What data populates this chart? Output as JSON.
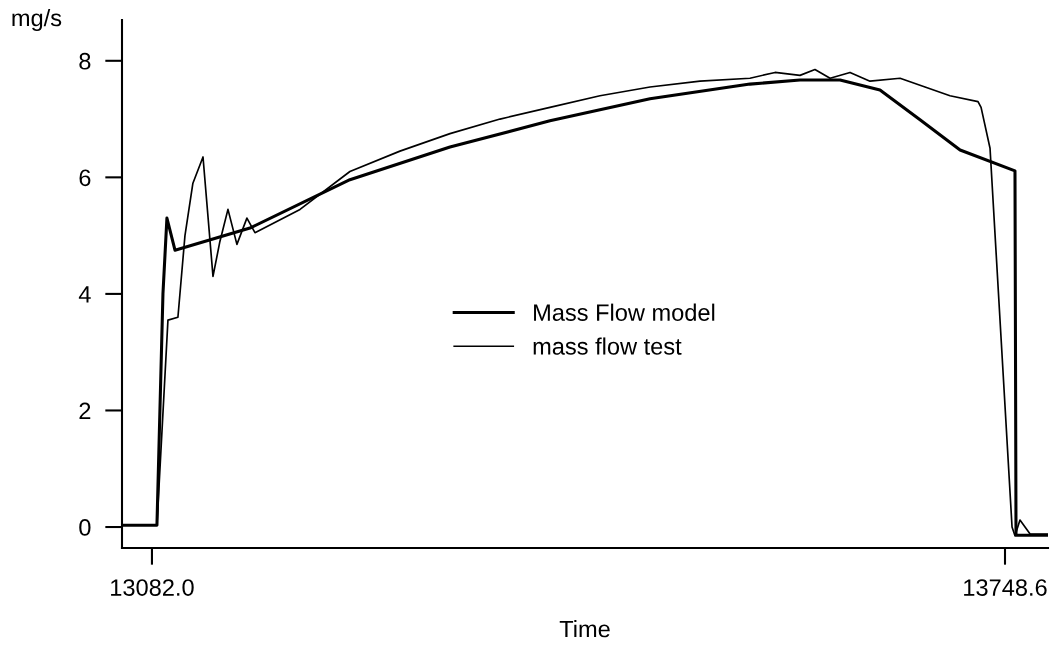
{
  "chart_data": {
    "type": "line",
    "xlabel": "Time",
    "ylabel": "mg/s",
    "xlim": [
      13058.6,
      13782.2
    ],
    "ylim": [
      -0.36,
      8.7
    ],
    "xticks": [
      {
        "value": 13082.0,
        "label": "13082.0"
      },
      {
        "value": 13748.6,
        "label": "13748.6"
      }
    ],
    "yticks": [
      0,
      2,
      4,
      6,
      8
    ],
    "grid": false,
    "legend": "center",
    "marker": "none",
    "line_style": "solid",
    "series": [
      {
        "name": "Mass Flow model",
        "color": "#000000",
        "x": [
          13060.1,
          13085.9,
          13090.6,
          13093.7,
          13100.0,
          13158.6,
          13236.7,
          13314.9,
          13393.0,
          13471.2,
          13549.3,
          13588.4,
          13619.7,
          13650.9,
          13682.2,
          13713.5,
          13756.4,
          13757.2,
          13782.2
        ],
        "values": [
          0.03,
          0.03,
          4.0,
          5.3,
          4.75,
          5.13,
          5.96,
          6.52,
          6.97,
          7.35,
          7.6,
          7.67,
          7.67,
          7.5,
          6.99,
          6.47,
          6.11,
          -0.14,
          -0.14
        ]
      },
      {
        "name": "mass flow test",
        "color": "#000000",
        "x": [
          13060.1,
          13085.9,
          13094.5,
          13102.3,
          13107.8,
          13114.0,
          13121.9,
          13129.7,
          13135.1,
          13141.4,
          13148.4,
          13156.2,
          13162.5,
          13197.7,
          13236.7,
          13275.8,
          13314.9,
          13354.0,
          13393.0,
          13432.1,
          13471.2,
          13510.3,
          13549.3,
          13568.9,
          13588.4,
          13600.1,
          13611.9,
          13627.5,
          13643.1,
          13666.6,
          13686.1,
          13705.6,
          13727.5,
          13729.9,
          13736.9,
          13754.1,
          13756.4,
          13760.3,
          13768.2,
          13782.2
        ],
        "values": [
          0.03,
          0.03,
          3.55,
          3.6,
          5.0,
          5.9,
          6.35,
          4.3,
          4.9,
          5.45,
          4.85,
          5.3,
          5.05,
          5.45,
          6.1,
          6.45,
          6.75,
          7.0,
          7.2,
          7.4,
          7.55,
          7.65,
          7.7,
          7.8,
          7.75,
          7.85,
          7.7,
          7.8,
          7.65,
          7.7,
          7.55,
          7.4,
          7.3,
          7.2,
          6.5,
          0.0,
          -0.15,
          0.12,
          -0.12,
          -0.12
        ]
      }
    ]
  }
}
